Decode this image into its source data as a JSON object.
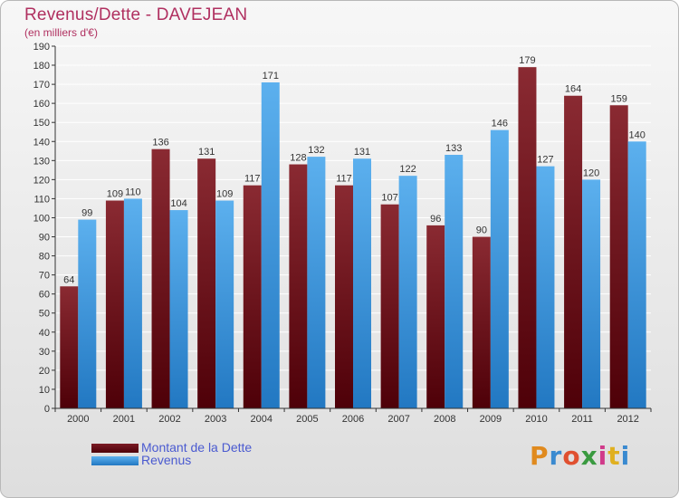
{
  "header": {
    "title": "Revenus/Dette - DAVEJEAN",
    "subtitle": "(en milliers d'€)"
  },
  "logo": {
    "text": "Proxiti"
  },
  "colors": {
    "dette": "#7a1a24",
    "revenus": "#3d96dc",
    "title": "#b03060",
    "legend_text": "#4a5ad0"
  },
  "legend": [
    {
      "label": "Montant de la Dette",
      "color": "#6b0e16"
    },
    {
      "label": "Revenus",
      "color": "#3d96dc"
    }
  ],
  "chart_data": {
    "type": "bar",
    "title": "Revenus/Dette - DAVEJEAN",
    "subtitle": "(en milliers d'€)",
    "categories": [
      "2000",
      "2001",
      "2002",
      "2003",
      "2004",
      "2005",
      "2006",
      "2007",
      "2008",
      "2009",
      "2010",
      "2011",
      "2012"
    ],
    "series": [
      {
        "name": "Montant de la Dette",
        "values": [
          64,
          109,
          136,
          131,
          117,
          128,
          117,
          107,
          96,
          90,
          179,
          164,
          159
        ]
      },
      {
        "name": "Revenus",
        "values": [
          99,
          110,
          104,
          109,
          171,
          132,
          131,
          122,
          133,
          146,
          127,
          120,
          140
        ]
      }
    ],
    "ylim": [
      0,
      190
    ],
    "ytick_step": 10,
    "grid": true,
    "legend_position": "bottom-left"
  }
}
